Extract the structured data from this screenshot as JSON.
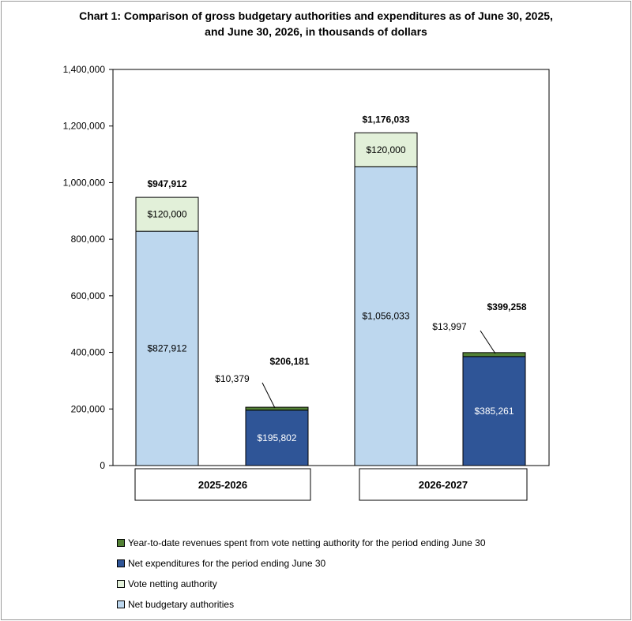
{
  "chart_data": {
    "type": "stacked-bar",
    "title_line1": "Chart 1: Comparison of gross budgetary authorities and expenditures as of June 30, 2025,",
    "title_line2": "and June 30, 2026, in thousands of dollars",
    "ylim": [
      0,
      1400000
    ],
    "yticks": [
      0,
      200000,
      400000,
      600000,
      800000,
      1000000,
      1200000,
      1400000
    ],
    "ytick_labels": [
      "0",
      "200,000",
      "400,000",
      "600,000",
      "800,000",
      "1,000,000",
      "1,200,000",
      "1,400,000"
    ],
    "categories": [
      "2025-2026",
      "2026-2027"
    ],
    "bars": [
      {
        "group": 0,
        "segments": [
          {
            "series": "Net budgetary authorities",
            "value": 827912,
            "label": "$827,912"
          },
          {
            "series": "Vote netting authority",
            "value": 120000,
            "label": "$120,000"
          }
        ],
        "total_label": "$947,912"
      },
      {
        "group": 0,
        "segments": [
          {
            "series": "Net expenditures for the period ending June 30",
            "value": 195802,
            "label": "$195,802"
          },
          {
            "series": "Year-to-date revenues spent from vote netting authority for the period ending June 30",
            "value": 10379,
            "label": "$10,379"
          }
        ],
        "total_label": "$206,181"
      },
      {
        "group": 1,
        "segments": [
          {
            "series": "Net budgetary authorities",
            "value": 1056033,
            "label": "$1,056,033"
          },
          {
            "series": "Vote netting authority",
            "value": 120000,
            "label": "$120,000"
          }
        ],
        "total_label": "$1,176,033"
      },
      {
        "group": 1,
        "segments": [
          {
            "series": "Net expenditures for the period ending June 30",
            "value": 385261,
            "label": "$385,261"
          },
          {
            "series": "Year-to-date revenues spent from vote netting authority for the period ending June 30",
            "value": 13997,
            "label": "$13,997"
          }
        ],
        "total_label": "$399,258"
      }
    ],
    "legend": [
      {
        "name": "Year-to-date revenues spent from vote netting authority for the period ending June 30",
        "color": "#538135"
      },
      {
        "name": "Net expenditures for the period ending June 30",
        "color": "#2f5597"
      },
      {
        "name": "Vote netting authority",
        "color": "#e2f0d9"
      },
      {
        "name": "Net budgetary authorities",
        "color": "#bdd7ee"
      }
    ],
    "series_colors": {
      "Net budgetary authorities": "#bdd7ee",
      "Vote netting authority": "#e2f0d9",
      "Net expenditures for the period ending June 30": "#2f5597",
      "Year-to-date revenues spent from vote netting authority for the period ending June 30": "#538135"
    },
    "grid": false,
    "legend_position": "bottom"
  }
}
